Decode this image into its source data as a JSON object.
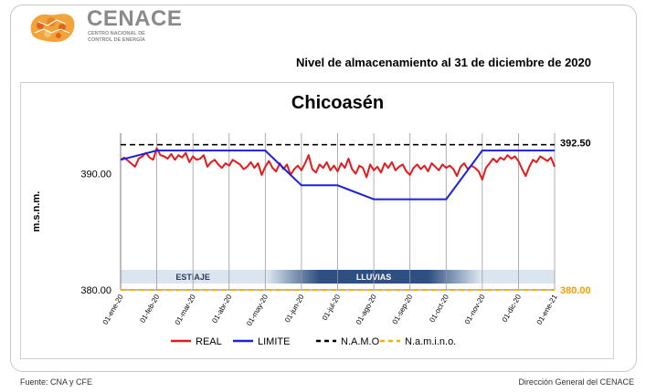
{
  "header": {
    "brand": "CENACE",
    "brand_sub": "CENTRO NACIONAL DE CONTROL DE ENERGÍA",
    "report_title": "Nivel de almacenamiento al 31 de diciembre de 2020"
  },
  "footer": {
    "source": "Fuente: CNA y CFE",
    "credit": "Dirección General del CENACE"
  },
  "chart_data": {
    "type": "line",
    "title": "Chicoasén",
    "ylabel": "m.s.n.m.",
    "ylim": [
      380,
      393.5
    ],
    "y_tick_labels": [
      "380.00",
      "390.00"
    ],
    "namo_label": "392.50",
    "namino_label": "380.00",
    "x_tick_labels": [
      "01-ene-20",
      "01-feb-20",
      "01-mar-20",
      "01-abr-20",
      "01-may-20",
      "01-jun-20",
      "01-jul-20",
      "01-ago-20",
      "01-sep-20",
      "01-oct-20",
      "01-nov-20",
      "01-dic-20",
      "01-ene-21"
    ],
    "seasons": [
      {
        "label": "ESTIAJE",
        "start_month": 0,
        "end_month": 4
      },
      {
        "label": "LLUVIAS",
        "start_month": 4,
        "end_month": 10
      }
    ],
    "series": [
      {
        "name": "REAL",
        "color": "#e41a1c",
        "x": [
          0,
          0.1,
          0.25,
          0.4,
          0.5,
          0.6,
          0.7,
          0.8,
          0.9,
          1.0,
          1.1,
          1.2,
          1.3,
          1.4,
          1.5,
          1.6,
          1.7,
          1.8,
          1.9,
          2.0,
          2.1,
          2.2,
          2.3,
          2.4,
          2.5,
          2.6,
          2.7,
          2.8,
          2.9,
          3.0,
          3.1,
          3.2,
          3.3,
          3.4,
          3.5,
          3.6,
          3.7,
          3.8,
          3.9,
          4.0,
          4.1,
          4.2,
          4.3,
          4.4,
          4.5,
          4.6,
          4.7,
          4.8,
          4.9,
          5.0,
          5.1,
          5.2,
          5.3,
          5.4,
          5.5,
          5.6,
          5.7,
          5.8,
          5.9,
          6.0,
          6.1,
          6.2,
          6.3,
          6.4,
          6.5,
          6.6,
          6.7,
          6.8,
          6.9,
          7.0,
          7.1,
          7.2,
          7.3,
          7.4,
          7.5,
          7.6,
          7.7,
          7.8,
          7.9,
          8.0,
          8.1,
          8.2,
          8.3,
          8.4,
          8.5,
          8.6,
          8.7,
          8.8,
          8.9,
          9.0,
          9.1,
          9.2,
          9.3,
          9.4,
          9.5,
          9.6,
          9.7,
          9.8,
          9.9,
          10.0,
          10.1,
          10.2,
          10.3,
          10.4,
          10.5,
          10.6,
          10.7,
          10.8,
          10.9,
          11.0,
          11.1,
          11.2,
          11.3,
          11.4,
          11.5,
          11.6,
          11.7,
          11.8,
          11.9,
          12.0
        ],
        "y": [
          391.2,
          391.4,
          391.0,
          390.6,
          391.3,
          391.5,
          391.8,
          391.4,
          391.2,
          392.2,
          391.6,
          391.5,
          391.3,
          391.7,
          391.2,
          391.6,
          391.4,
          391.8,
          391.0,
          391.5,
          391.2,
          391.3,
          391.6,
          390.6,
          391.0,
          391.2,
          390.8,
          390.5,
          390.9,
          390.7,
          391.2,
          391.0,
          390.8,
          390.4,
          390.6,
          391.0,
          390.5,
          390.9,
          389.9,
          390.6,
          391.1,
          390.5,
          390.2,
          390.9,
          390.4,
          390.8,
          389.9,
          390.4,
          390.7,
          390.3,
          390.9,
          391.6,
          390.4,
          390.1,
          390.8,
          390.5,
          391.0,
          390.3,
          390.7,
          390.2,
          390.9,
          390.5,
          391.3,
          390.4,
          390.0,
          390.7,
          390.5,
          389.7,
          390.8,
          390.3,
          390.6,
          390.1,
          390.9,
          390.5,
          391.0,
          390.3,
          390.6,
          390.8,
          390.2,
          389.9,
          390.5,
          390.8,
          390.4,
          390.7,
          390.2,
          390.9,
          390.6,
          390.3,
          390.8,
          390.5,
          390.7,
          390.4,
          389.8,
          390.6,
          390.9,
          390.4,
          390.7,
          390.5,
          390.2,
          389.5,
          390.5,
          390.9,
          391.3,
          391.0,
          391.4,
          391.2,
          391.6,
          391.3,
          391.5,
          391.1,
          390.4,
          389.8,
          390.6,
          391.2,
          391.0,
          391.5,
          391.3,
          391.1,
          391.4,
          390.6
        ],
        "width": 2
      },
      {
        "name": "LIMITE",
        "color": "#1f1fe0",
        "x": [
          0,
          1,
          4,
          5,
          6,
          7,
          8,
          9,
          10,
          11,
          12
        ],
        "y": [
          391.2,
          392.0,
          392.0,
          389.0,
          389.0,
          387.8,
          387.8,
          387.8,
          392.0,
          392.0,
          392.0
        ],
        "width": 2
      },
      {
        "name": "N.A.M.O",
        "color": "#000000",
        "dash": "6,4",
        "x": [
          0,
          12
        ],
        "y": [
          392.5,
          392.5
        ],
        "width": 1.6
      },
      {
        "name": "N.a.m.i.n.o.",
        "color": "#f0b400",
        "dash": "6,4",
        "x": [
          0,
          12
        ],
        "y": [
          380.0,
          380.0
        ],
        "width": 2
      }
    ]
  },
  "colors": {
    "real": "#e41a1c",
    "limite": "#1f1fe0",
    "namino_label": "#f0a000"
  }
}
